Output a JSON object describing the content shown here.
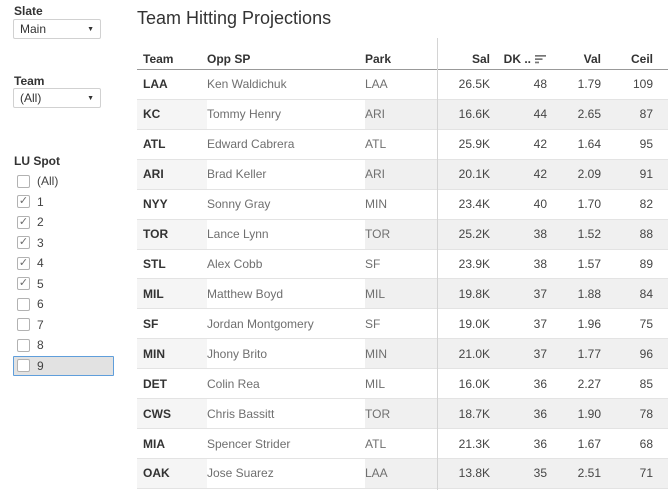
{
  "sidebar": {
    "slate_filter": {
      "label": "Slate",
      "value": "Main"
    },
    "team_filter": {
      "label": "Team",
      "value": "(All)"
    },
    "lu_spot_filter": {
      "label": "LU Spot",
      "options": [
        {
          "label": "(All)",
          "checked": false,
          "highlighted": false
        },
        {
          "label": "1",
          "checked": true,
          "highlighted": false
        },
        {
          "label": "2",
          "checked": true,
          "highlighted": false
        },
        {
          "label": "3",
          "checked": true,
          "highlighted": false
        },
        {
          "label": "4",
          "checked": true,
          "highlighted": false
        },
        {
          "label": "5",
          "checked": true,
          "highlighted": false
        },
        {
          "label": "6",
          "checked": false,
          "highlighted": false
        },
        {
          "label": "7",
          "checked": false,
          "highlighted": false
        },
        {
          "label": "8",
          "checked": false,
          "highlighted": false
        },
        {
          "label": "9",
          "checked": false,
          "highlighted": true
        }
      ]
    }
  },
  "main": {
    "title": "Team Hitting Projections",
    "table": {
      "columns": [
        {
          "label": "Team"
        },
        {
          "label": "Opp SP"
        },
        {
          "label": "Park"
        },
        {
          "label": "Sal"
        },
        {
          "label": "DK ..",
          "sorted": "descending"
        },
        {
          "label": "Val"
        },
        {
          "label": "Ceil"
        }
      ],
      "rows": [
        {
          "team": "LAA",
          "opp_sp": "Ken Waldichuk",
          "park": "LAA",
          "sal": "26.5K",
          "dk": "48",
          "val": "1.79",
          "ceil": "109"
        },
        {
          "team": "KC",
          "opp_sp": "Tommy Henry",
          "park": "ARI",
          "sal": "16.6K",
          "dk": "44",
          "val": "2.65",
          "ceil": "87"
        },
        {
          "team": "ATL",
          "opp_sp": "Edward Cabrera",
          "park": "ATL",
          "sal": "25.9K",
          "dk": "42",
          "val": "1.64",
          "ceil": "95"
        },
        {
          "team": "ARI",
          "opp_sp": "Brad Keller",
          "park": "ARI",
          "sal": "20.1K",
          "dk": "42",
          "val": "2.09",
          "ceil": "91"
        },
        {
          "team": "NYY",
          "opp_sp": "Sonny Gray",
          "park": "MIN",
          "sal": "23.4K",
          "dk": "40",
          "val": "1.70",
          "ceil": "82"
        },
        {
          "team": "TOR",
          "opp_sp": "Lance Lynn",
          "park": "TOR",
          "sal": "25.2K",
          "dk": "38",
          "val": "1.52",
          "ceil": "88"
        },
        {
          "team": "STL",
          "opp_sp": "Alex Cobb",
          "park": "SF",
          "sal": "23.9K",
          "dk": "38",
          "val": "1.57",
          "ceil": "89"
        },
        {
          "team": "MIL",
          "opp_sp": "Matthew Boyd",
          "park": "MIL",
          "sal": "19.8K",
          "dk": "37",
          "val": "1.88",
          "ceil": "84"
        },
        {
          "team": "SF",
          "opp_sp": "Jordan Montgomery",
          "park": "SF",
          "sal": "19.0K",
          "dk": "37",
          "val": "1.96",
          "ceil": "75"
        },
        {
          "team": "MIN",
          "opp_sp": "Jhony Brito",
          "park": "MIN",
          "sal": "21.0K",
          "dk": "37",
          "val": "1.77",
          "ceil": "96"
        },
        {
          "team": "DET",
          "opp_sp": "Colin Rea",
          "park": "MIL",
          "sal": "16.0K",
          "dk": "36",
          "val": "2.27",
          "ceil": "85"
        },
        {
          "team": "CWS",
          "opp_sp": "Chris Bassitt",
          "park": "TOR",
          "sal": "18.7K",
          "dk": "36",
          "val": "1.90",
          "ceil": "78"
        },
        {
          "team": "MIA",
          "opp_sp": "Spencer Strider",
          "park": "ATL",
          "sal": "21.3K",
          "dk": "36",
          "val": "1.67",
          "ceil": "68"
        },
        {
          "team": "OAK",
          "opp_sp": "Jose Suarez",
          "park": "LAA",
          "sal": "13.8K",
          "dk": "35",
          "val": "2.51",
          "ceil": "71"
        }
      ]
    }
  },
  "icons": {
    "checkmark": "✓",
    "dropdown_caret": "▼"
  },
  "colors": {
    "highlight_border": "#5f9edb",
    "highlight_bg": "#e2e2e2",
    "band_header": "#f5f5f5",
    "band_pane": "#f0f0f0",
    "header_rule": "#999999",
    "row_rule": "#e3e3e3",
    "divider": "#d4d4d4"
  }
}
